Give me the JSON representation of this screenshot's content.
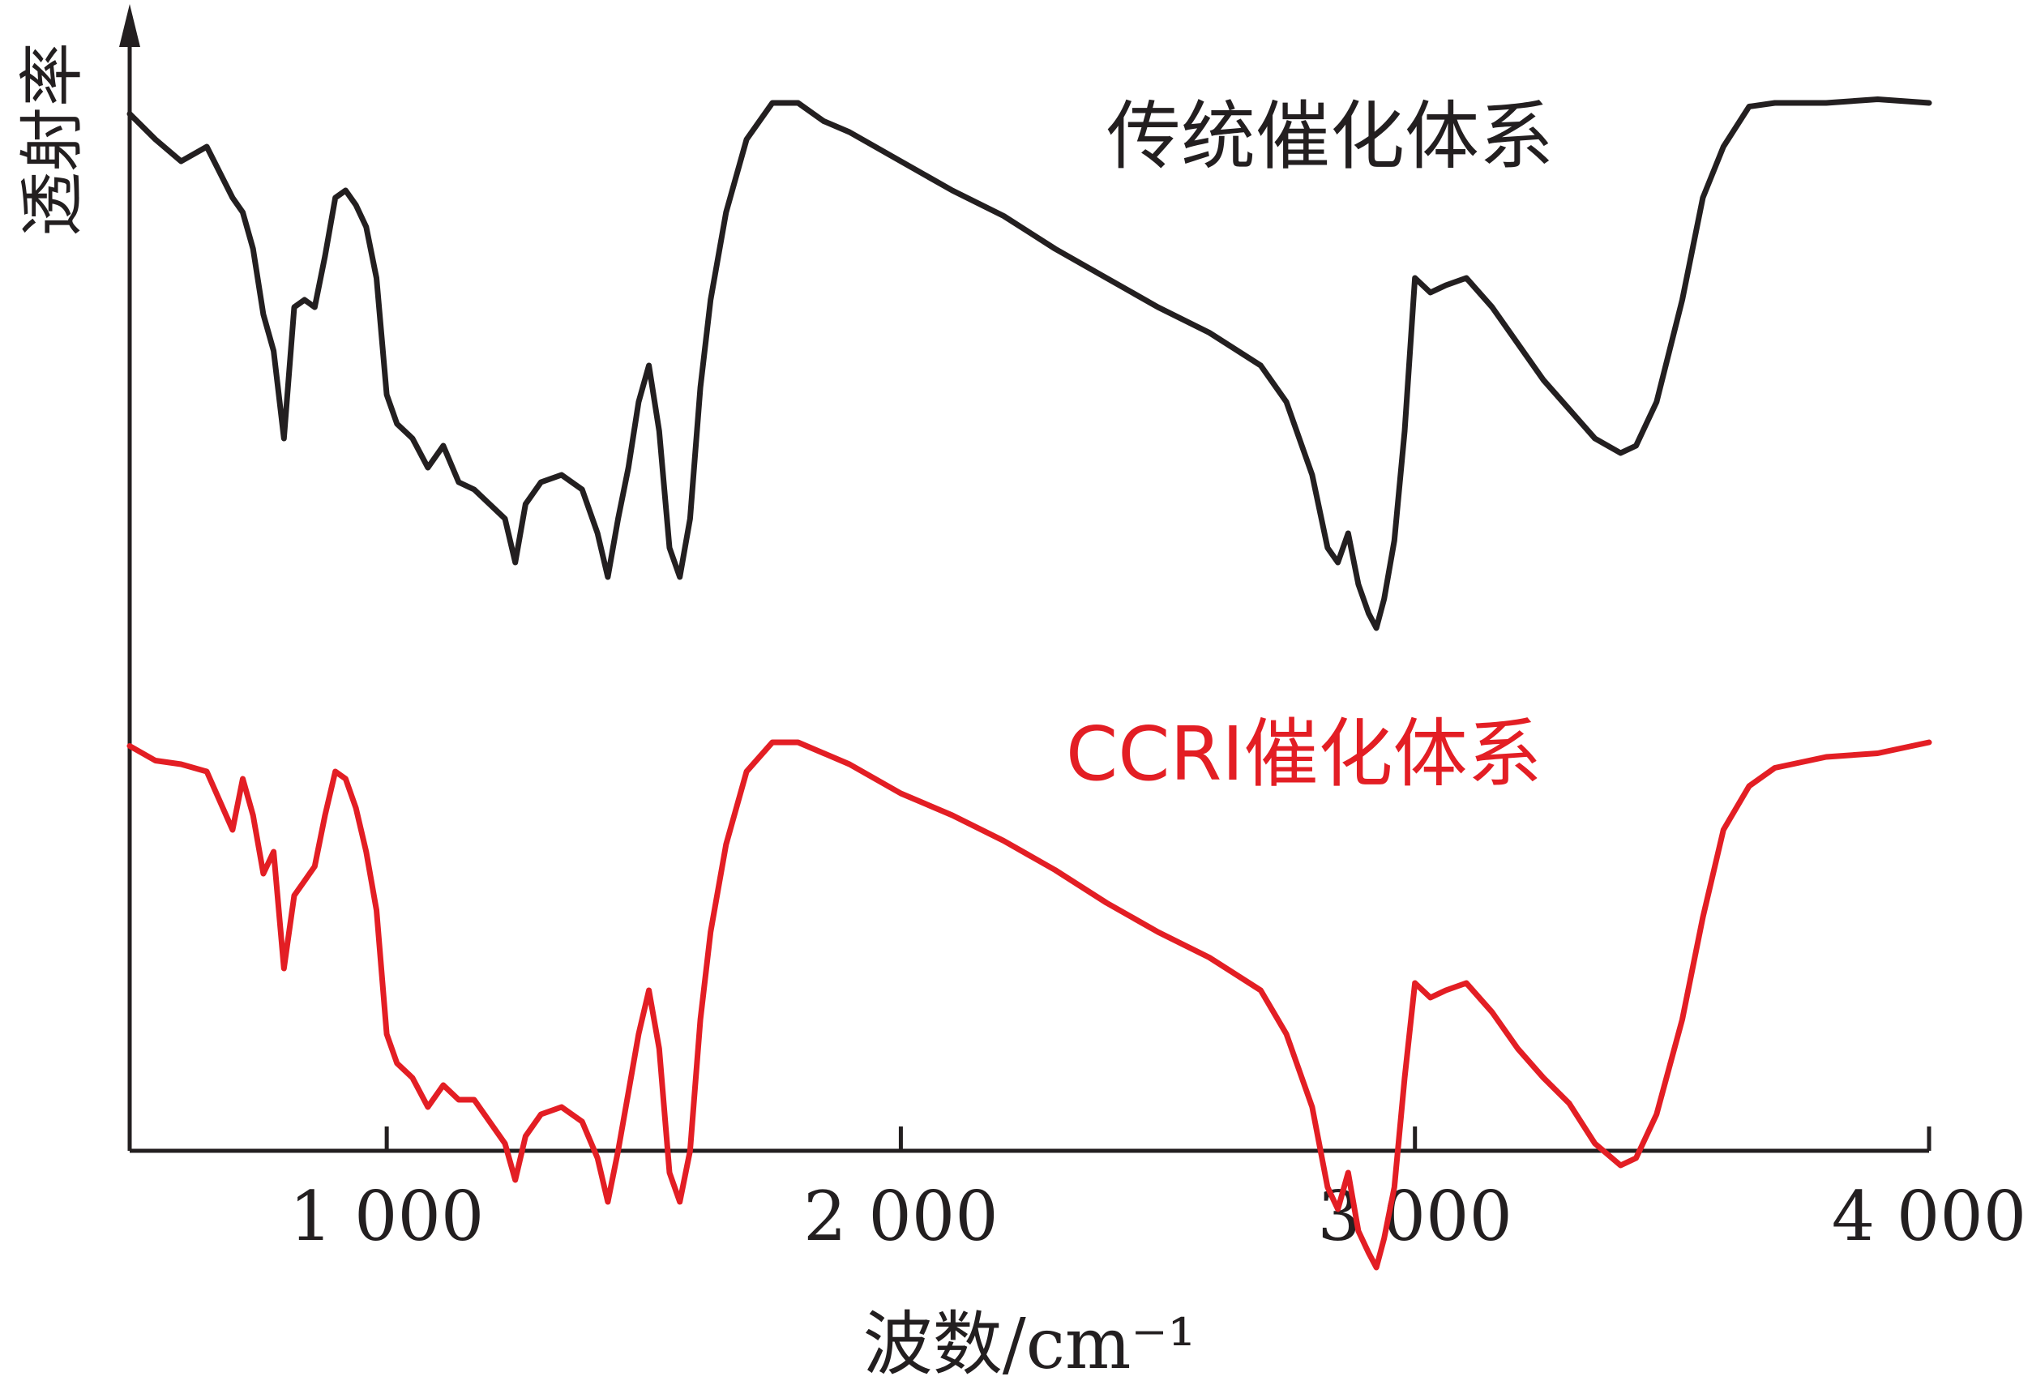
{
  "chart_data": {
    "type": "line",
    "xlabel": "波数/cm⁻¹",
    "ylabel": "透射率",
    "xlim": [
      500,
      4000
    ],
    "x_ticks": [
      1000,
      2000,
      3000,
      4000
    ],
    "x_tick_labels": [
      "1 000",
      "2 000",
      "3 000",
      "4 000"
    ],
    "series": [
      {
        "name": "传统催化体系",
        "color": "#231f20",
        "x": [
          500,
          550,
          600,
          650,
          700,
          720,
          740,
          760,
          780,
          800,
          820,
          840,
          860,
          880,
          900,
          920,
          940,
          960,
          980,
          1000,
          1020,
          1050,
          1080,
          1110,
          1140,
          1170,
          1200,
          1230,
          1250,
          1270,
          1300,
          1340,
          1380,
          1410,
          1430,
          1450,
          1470,
          1490,
          1510,
          1530,
          1550,
          1570,
          1590,
          1610,
          1630,
          1660,
          1700,
          1750,
          1800,
          1850,
          1900,
          2000,
          2100,
          2200,
          2300,
          2400,
          2500,
          2600,
          2700,
          2750,
          2800,
          2830,
          2850,
          2870,
          2890,
          2910,
          2925,
          2940,
          2960,
          2980,
          3000,
          3030,
          3060,
          3100,
          3150,
          3200,
          3250,
          3300,
          3350,
          3400,
          3430,
          3470,
          3520,
          3560,
          3600,
          3650,
          3700,
          3800,
          3900,
          4000
        ],
        "y": [
          95.5,
          92,
          89,
          91,
          84,
          82,
          77,
          68,
          63,
          51,
          69,
          70,
          69,
          76,
          84,
          85,
          83,
          80,
          73,
          57,
          53,
          51,
          47,
          50,
          45,
          44,
          42,
          40,
          34,
          42,
          45,
          46,
          44,
          38,
          32,
          40,
          47,
          56,
          61,
          52,
          36,
          32,
          40,
          58,
          70,
          82,
          92,
          97,
          97,
          94.5,
          93,
          89,
          85,
          81.5,
          77,
          73,
          69,
          65.5,
          61,
          56,
          46,
          36,
          34,
          38,
          31,
          27,
          25,
          29,
          37,
          52,
          73,
          71,
          72,
          73,
          69,
          64,
          59,
          55,
          51,
          49,
          50,
          56,
          70,
          84,
          91,
          96.5,
          97,
          97,
          97.5,
          97
        ]
      },
      {
        "name": "CCRI催化体系",
        "color": "#e31e24",
        "x": [
          500,
          550,
          600,
          650,
          700,
          720,
          740,
          760,
          780,
          800,
          820,
          840,
          860,
          880,
          900,
          920,
          940,
          960,
          980,
          1000,
          1020,
          1050,
          1080,
          1110,
          1140,
          1170,
          1200,
          1230,
          1250,
          1270,
          1300,
          1340,
          1380,
          1410,
          1430,
          1450,
          1470,
          1490,
          1510,
          1530,
          1550,
          1570,
          1590,
          1610,
          1630,
          1660,
          1700,
          1750,
          1800,
          1850,
          1900,
          2000,
          2100,
          2200,
          2300,
          2400,
          2500,
          2600,
          2700,
          2750,
          2800,
          2830,
          2850,
          2870,
          2890,
          2910,
          2925,
          2940,
          2960,
          2980,
          3000,
          3030,
          3060,
          3100,
          3150,
          3200,
          3250,
          3300,
          3350,
          3400,
          3430,
          3470,
          3520,
          3560,
          3600,
          3650,
          3700,
          3800,
          3900,
          4000
        ],
        "y": [
          95.5,
          93.5,
          93,
          92,
          84,
          91,
          86,
          78,
          81,
          65,
          75,
          77,
          79,
          86,
          92,
          91,
          87,
          81,
          73,
          56,
          52,
          50,
          46,
          49,
          47,
          47,
          44,
          41,
          36,
          42,
          45,
          46,
          44,
          39,
          33,
          40,
          48,
          56,
          62,
          54,
          37,
          33,
          40,
          58,
          70,
          82,
          92,
          96,
          96,
          94.5,
          93,
          89,
          86,
          82.5,
          78.5,
          74,
          70,
          66.5,
          62,
          56,
          46,
          35,
          32,
          37,
          29,
          26,
          24,
          28,
          35,
          50,
          63,
          61,
          62,
          63,
          59,
          54,
          50,
          46.5,
          41,
          38,
          39,
          45,
          58,
          72,
          84,
          90,
          92.5,
          94,
          94.5,
          96
        ]
      }
    ],
    "annotations": [
      "传统催化体系",
      "CCRI催化体系"
    ],
    "grid": false,
    "legend": "inline text labels"
  }
}
